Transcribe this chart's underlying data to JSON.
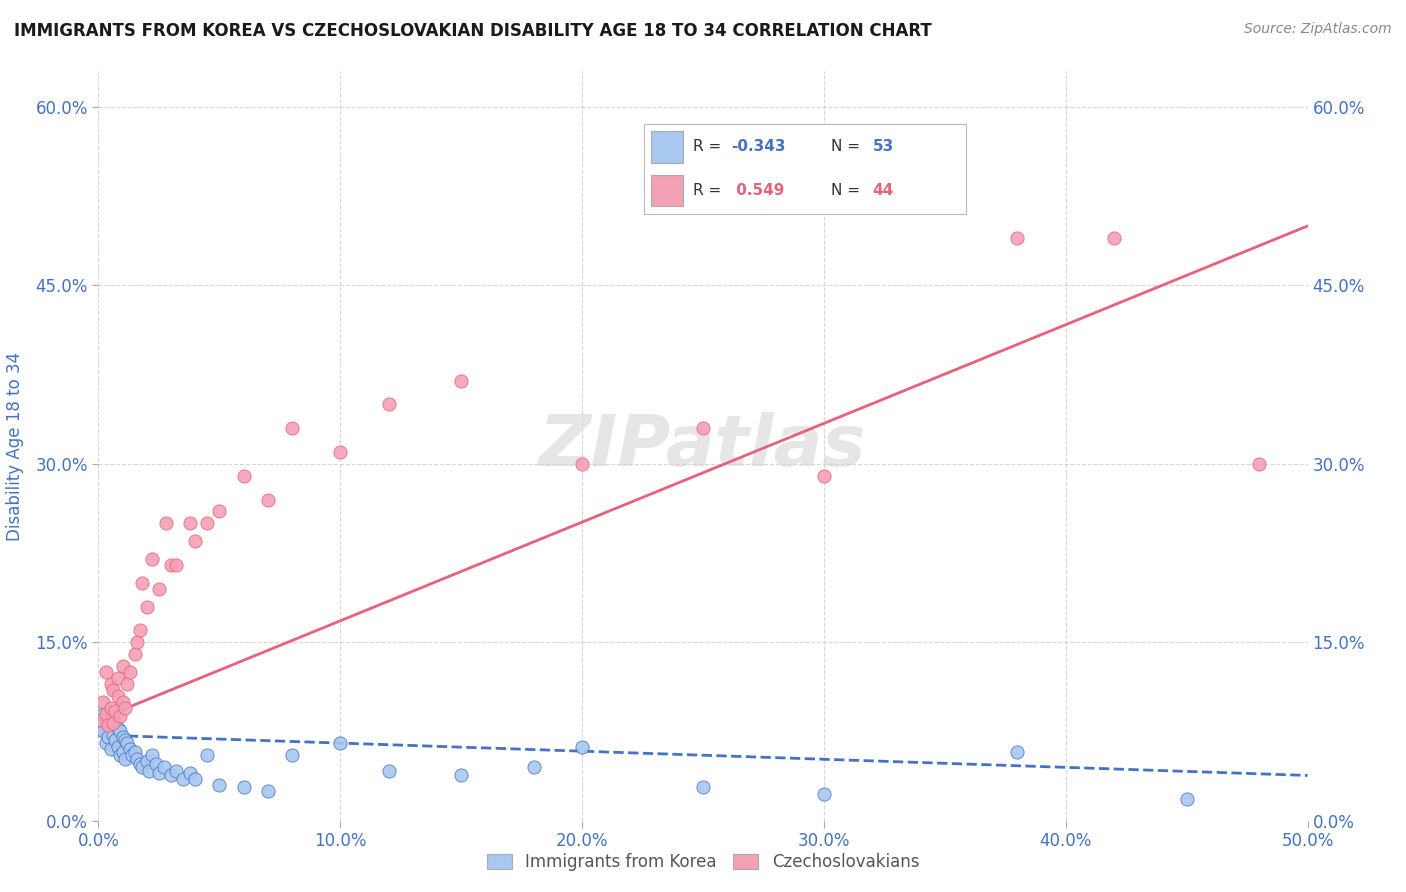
{
  "title": "IMMIGRANTS FROM KOREA VS CZECHOSLOVAKIAN DISABILITY AGE 18 TO 34 CORRELATION CHART",
  "source": "Source: ZipAtlas.com",
  "ylabel": "Disability Age 18 to 34",
  "xlim": [
    0.0,
    0.5
  ],
  "ylim": [
    0.0,
    0.63
  ],
  "xticks": [
    0.0,
    0.1,
    0.2,
    0.3,
    0.4,
    0.5
  ],
  "xticklabels": [
    "0.0%",
    "10.0%",
    "20.0%",
    "30.0%",
    "40.0%",
    "50.0%"
  ],
  "yticks": [
    0.0,
    0.15,
    0.3,
    0.45,
    0.6
  ],
  "yticklabels": [
    "0.0%",
    "15.0%",
    "30.0%",
    "45.0%",
    "60.0%"
  ],
  "korea_R": -0.343,
  "korea_N": 53,
  "czech_R": 0.549,
  "czech_N": 44,
  "korea_color": "#A8C8F0",
  "czech_color": "#F4A0B5",
  "korea_line_color": "#4472C4",
  "czech_line_color": "#E8607A",
  "background_color": "#FFFFFF",
  "grid_color": "#CCCCCC",
  "watermark": "ZIPatlas",
  "title_color": "#1A1A1A",
  "axis_label_color": "#4472C4",
  "tick_label_color": "#4472C4",
  "legend_label1": "Immigrants from Korea",
  "legend_label2": "Czechoslovakians",
  "korea_line_y0": 0.072,
  "korea_line_y1": 0.038,
  "czech_line_y0": 0.085,
  "czech_line_y1": 0.5,
  "korea_scatter_x": [
    0.001,
    0.002,
    0.002,
    0.003,
    0.003,
    0.004,
    0.004,
    0.005,
    0.005,
    0.006,
    0.006,
    0.007,
    0.007,
    0.008,
    0.008,
    0.009,
    0.009,
    0.01,
    0.01,
    0.011,
    0.011,
    0.012,
    0.013,
    0.014,
    0.015,
    0.016,
    0.017,
    0.018,
    0.02,
    0.021,
    0.022,
    0.024,
    0.025,
    0.027,
    0.03,
    0.032,
    0.035,
    0.038,
    0.04,
    0.045,
    0.05,
    0.06,
    0.07,
    0.08,
    0.1,
    0.12,
    0.15,
    0.18,
    0.2,
    0.25,
    0.3,
    0.38,
    0.45
  ],
  "korea_scatter_y": [
    0.08,
    0.09,
    0.075,
    0.085,
    0.065,
    0.092,
    0.07,
    0.088,
    0.06,
    0.085,
    0.072,
    0.082,
    0.068,
    0.078,
    0.062,
    0.075,
    0.055,
    0.07,
    0.058,
    0.068,
    0.052,
    0.065,
    0.06,
    0.055,
    0.058,
    0.052,
    0.048,
    0.045,
    0.05,
    0.042,
    0.055,
    0.048,
    0.04,
    0.045,
    0.038,
    0.042,
    0.035,
    0.04,
    0.035,
    0.055,
    0.03,
    0.028,
    0.025,
    0.055,
    0.065,
    0.042,
    0.038,
    0.045,
    0.062,
    0.028,
    0.022,
    0.058,
    0.018
  ],
  "czech_scatter_x": [
    0.001,
    0.002,
    0.003,
    0.003,
    0.004,
    0.005,
    0.005,
    0.006,
    0.006,
    0.007,
    0.008,
    0.008,
    0.009,
    0.01,
    0.01,
    0.011,
    0.012,
    0.013,
    0.015,
    0.016,
    0.017,
    0.018,
    0.02,
    0.022,
    0.025,
    0.028,
    0.03,
    0.032,
    0.038,
    0.04,
    0.045,
    0.05,
    0.06,
    0.07,
    0.08,
    0.1,
    0.12,
    0.15,
    0.2,
    0.25,
    0.3,
    0.38,
    0.42,
    0.48
  ],
  "czech_scatter_y": [
    0.085,
    0.1,
    0.09,
    0.125,
    0.08,
    0.095,
    0.115,
    0.082,
    0.11,
    0.092,
    0.105,
    0.12,
    0.088,
    0.1,
    0.13,
    0.095,
    0.115,
    0.125,
    0.14,
    0.15,
    0.16,
    0.2,
    0.18,
    0.22,
    0.195,
    0.25,
    0.215,
    0.215,
    0.25,
    0.235,
    0.25,
    0.26,
    0.29,
    0.27,
    0.33,
    0.31,
    0.35,
    0.37,
    0.3,
    0.33,
    0.29,
    0.49,
    0.49,
    0.3
  ]
}
